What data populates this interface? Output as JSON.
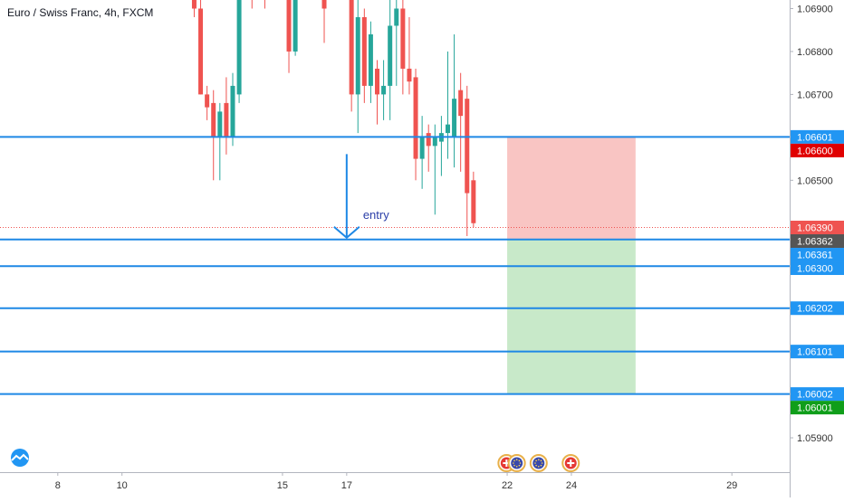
{
  "chart_data": {
    "type": "candlestick",
    "title": "Euro / Swiss Franc, 4h, FXCM",
    "y_range": [
      1.0582,
      1.0692
    ],
    "x_range": [
      6.2,
      30.8
    ],
    "y_ticks": [
      "1.06900",
      "1.06800",
      "1.06700",
      "1.06500",
      "1.05900"
    ],
    "x_ticks": [
      {
        "day": 8,
        "label": "8"
      },
      {
        "day": 10,
        "label": "10"
      },
      {
        "day": 15,
        "label": "15"
      },
      {
        "day": 17,
        "label": "17"
      },
      {
        "day": 22,
        "label": "22"
      },
      {
        "day": 24,
        "label": "24"
      },
      {
        "day": 29,
        "label": "29"
      }
    ],
    "candles": [
      {
        "t": 12.25,
        "o": 1.0695,
        "h": 1.0697,
        "l": 1.0688,
        "c": 1.069
      },
      {
        "t": 12.45,
        "o": 1.069,
        "h": 1.0694,
        "l": 1.067,
        "c": 1.067
      },
      {
        "t": 12.65,
        "o": 1.067,
        "h": 1.0672,
        "l": 1.0664,
        "c": 1.0667
      },
      {
        "t": 12.85,
        "o": 1.0668,
        "h": 1.0671,
        "l": 1.065,
        "c": 1.066
      },
      {
        "t": 13.05,
        "o": 1.066,
        "h": 1.0668,
        "l": 1.065,
        "c": 1.0666
      },
      {
        "t": 13.25,
        "o": 1.0668,
        "h": 1.0674,
        "l": 1.0656,
        "c": 1.066
      },
      {
        "t": 13.45,
        "o": 1.066,
        "h": 1.0675,
        "l": 1.0658,
        "c": 1.0672
      },
      {
        "t": 13.65,
        "o": 1.067,
        "h": 1.0697,
        "l": 1.0668,
        "c": 1.0695
      },
      {
        "t": 14.05,
        "o": 1.0695,
        "h": 1.0696,
        "l": 1.069,
        "c": 1.0693
      },
      {
        "t": 14.45,
        "o": 1.0694,
        "h": 1.0697,
        "l": 1.069,
        "c": 1.0693
      },
      {
        "t": 15.2,
        "o": 1.0695,
        "h": 1.0697,
        "l": 1.0675,
        "c": 1.068
      },
      {
        "t": 15.4,
        "o": 1.068,
        "h": 1.0697,
        "l": 1.0679,
        "c": 1.0695
      },
      {
        "t": 16.3,
        "o": 1.0695,
        "h": 1.0697,
        "l": 1.0682,
        "c": 1.069
      },
      {
        "t": 17.15,
        "o": 1.0695,
        "h": 1.0697,
        "l": 1.0666,
        "c": 1.067
      },
      {
        "t": 17.35,
        "o": 1.067,
        "h": 1.0692,
        "l": 1.0661,
        "c": 1.0688
      },
      {
        "t": 17.55,
        "o": 1.0688,
        "h": 1.069,
        "l": 1.0668,
        "c": 1.0672
      },
      {
        "t": 17.75,
        "o": 1.0672,
        "h": 1.0687,
        "l": 1.0668,
        "c": 1.0684
      },
      {
        "t": 17.95,
        "o": 1.0676,
        "h": 1.0678,
        "l": 1.0663,
        "c": 1.067
      },
      {
        "t": 18.15,
        "o": 1.067,
        "h": 1.0678,
        "l": 1.0664,
        "c": 1.0672
      },
      {
        "t": 18.35,
        "o": 1.0672,
        "h": 1.0694,
        "l": 1.0664,
        "c": 1.0686
      },
      {
        "t": 18.55,
        "o": 1.0686,
        "h": 1.0696,
        "l": 1.0672,
        "c": 1.069
      },
      {
        "t": 18.75,
        "o": 1.069,
        "h": 1.0694,
        "l": 1.067,
        "c": 1.0676
      },
      {
        "t": 18.95,
        "o": 1.0676,
        "h": 1.0688,
        "l": 1.067,
        "c": 1.0673
      },
      {
        "t": 19.15,
        "o": 1.0674,
        "h": 1.0676,
        "l": 1.065,
        "c": 1.0655
      },
      {
        "t": 19.35,
        "o": 1.0655,
        "h": 1.0665,
        "l": 1.0648,
        "c": 1.066
      },
      {
        "t": 19.55,
        "o": 1.0661,
        "h": 1.0663,
        "l": 1.0652,
        "c": 1.0658
      },
      {
        "t": 19.75,
        "o": 1.0658,
        "h": 1.0663,
        "l": 1.0642,
        "c": 1.066
      },
      {
        "t": 19.95,
        "o": 1.0659,
        "h": 1.0665,
        "l": 1.0651,
        "c": 1.0661
      },
      {
        "t": 20.15,
        "o": 1.0661,
        "h": 1.068,
        "l": 1.0655,
        "c": 1.0663
      },
      {
        "t": 20.35,
        "o": 1.066,
        "h": 1.0684,
        "l": 1.0653,
        "c": 1.0669
      },
      {
        "t": 20.55,
        "o": 1.0671,
        "h": 1.0675,
        "l": 1.0652,
        "c": 1.0665
      },
      {
        "t": 20.75,
        "o": 1.0669,
        "h": 1.0672,
        "l": 1.0637,
        "c": 1.0647
      },
      {
        "t": 20.95,
        "o": 1.065,
        "h": 1.0652,
        "l": 1.0639,
        "c": 1.064
      }
    ],
    "horizontal_lines": [
      1.06601,
      1.06362,
      1.063,
      1.06202,
      1.06101,
      1.06002
    ],
    "current_price_line": 1.0639,
    "position": {
      "start_day": 22.0,
      "end_day": 26.0,
      "stop": 1.066,
      "entry": 1.06362,
      "target": 1.06002
    },
    "entry_arrow": {
      "day": 17.0,
      "from": 1.06561,
      "to": 1.06362,
      "label": "entry"
    },
    "price_labels": [
      {
        "price": 1.06601,
        "text": "1.06601",
        "bg": "#2196f3",
        "color": "#ffffff"
      },
      {
        "price": 1.066,
        "text": "1.06600",
        "bg": "#e00000",
        "color": "#ffffff"
      },
      {
        "price": 1.0639,
        "text": "1.06390",
        "bg": "#ef5350",
        "color": "#ffffff"
      },
      {
        "price": 1.06362,
        "text": "1.06362",
        "bg": "#555555",
        "color": "#ffffff"
      },
      {
        "price": 1.06361,
        "text": "1.06361",
        "bg": "#2196f3",
        "color": "#ffffff"
      },
      {
        "price": 1.063,
        "text": "1.06300",
        "bg": "#2196f3",
        "color": "#ffffff"
      },
      {
        "price": 1.06202,
        "text": "1.06202",
        "bg": "#2196f3",
        "color": "#ffffff"
      },
      {
        "price": 1.06101,
        "text": "1.06101",
        "bg": "#2196f3",
        "color": "#ffffff"
      },
      {
        "price": 1.06002,
        "text": "1.06002",
        "bg": "#2196f3",
        "color": "#ffffff"
      },
      {
        "price": 1.06001,
        "text": "1.06001",
        "bg": "#109e1a",
        "color": "#ffffff"
      }
    ],
    "event_icons": [
      {
        "day": 21.98,
        "type": "swiss-flag-icon"
      },
      {
        "day": 22.3,
        "type": "eu-flag-icon"
      },
      {
        "day": 22.98,
        "type": "eu-flag-icon"
      },
      {
        "day": 23.98,
        "type": "swiss-flag-icon"
      }
    ],
    "colors": {
      "up": "#26a69a",
      "down": "#ef5350",
      "line": "#1e88e5",
      "stop_zone": "#f9c5c3",
      "target_zone": "#c8e9c9",
      "arrow": "#1e88e5",
      "arrow_label": "#2b3fa8"
    }
  }
}
